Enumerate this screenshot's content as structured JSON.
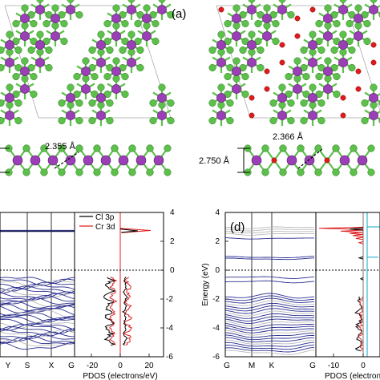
{
  "panel_labels": {
    "a": "(a)",
    "d": "(d)"
  },
  "annotations": {
    "bond_a": "2.355 Å",
    "bond_b": "2.366 Å",
    "height_b": "2.750 Å"
  },
  "colors": {
    "cr_atom": "#9a3fb5",
    "cl_atom": "#5cc04a",
    "o_atom": "#e01b1b",
    "band_blue": "#2a2e8f",
    "band_grey": "#b9b9b9",
    "cl3p": "#000000",
    "cr3d": "#e02020",
    "cyan": "#36b6d6",
    "fermi": "#000000"
  },
  "chart_data": [
    {
      "type": "line",
      "panel": "c",
      "kind": "band_structure",
      "x_tick_labels": [
        "Y",
        "S",
        "X",
        "G"
      ],
      "ylim": [
        -6,
        4
      ],
      "fermi_level": 0
    },
    {
      "type": "line",
      "panel": "c",
      "kind": "pdos",
      "xlabel": "PDOS (electrons/eV)",
      "x_tick_labels": [
        "-20",
        "0",
        "20"
      ],
      "y_tick_labels": [
        "4",
        "2",
        "0",
        "-2",
        "-4",
        "-6"
      ],
      "ylim": [
        -6,
        4
      ],
      "legend": [
        "Cl 3p",
        "Cr 3d"
      ],
      "series": [
        {
          "name": "Cl 3p",
          "color": "#000000"
        },
        {
          "name": "Cr 3d",
          "color": "#e02020"
        }
      ]
    },
    {
      "type": "line",
      "panel": "d",
      "kind": "band_structure",
      "ylabel": "Energy (eV)",
      "y_tick_labels": [
        "4",
        "2",
        "0",
        "-2",
        "-4",
        "-6"
      ],
      "x_tick_labels": [
        "G",
        "M",
        "K",
        "G"
      ],
      "ylim": [
        -6,
        4
      ],
      "fermi_level": 0
    },
    {
      "type": "line",
      "panel": "d",
      "kind": "pdos",
      "xlabel": "PDOS (electrons",
      "x_tick_labels": [
        "-10",
        "0"
      ],
      "ylim": [
        -6,
        4
      ]
    }
  ]
}
